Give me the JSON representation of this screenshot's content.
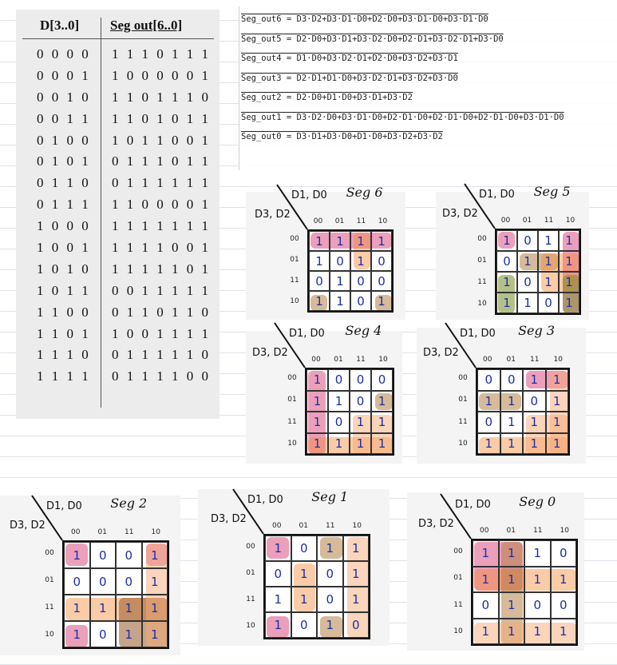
{
  "truth_table": {
    "header_input": "D[3..0]",
    "header_output": "Seg out[6..0]",
    "rows": [
      {
        "d": "0 0 0 0",
        "seg": "1 1 1 0 1 1 1"
      },
      {
        "d": "0 0 0 1",
        "seg": "1 0 0 0 0 0 1"
      },
      {
        "d": "0 0 1 0",
        "seg": "1 1 0 1 1 1 0"
      },
      {
        "d": "0 0 1 1",
        "seg": "1 1 0 1 0 1 1"
      },
      {
        "d": "0 1 0 0",
        "seg": "1 0 1 1 0 0 1"
      },
      {
        "d": "0 1 0 1",
        "seg": "0 1 1 1 0 1 1"
      },
      {
        "d": "0 1 1 0",
        "seg": "0 1 1 1 1 1 1"
      },
      {
        "d": "0 1 1 1",
        "seg": "1 1 0 0 0 0 1"
      },
      {
        "d": "1 0 0 0",
        "seg": "1 1 1 1 1 1 1"
      },
      {
        "d": "1 0 0 1",
        "seg": "1 1 1 1 0 0 1"
      },
      {
        "d": "1 0 1 0",
        "seg": "1 1 1 1 1 0 1"
      },
      {
        "d": "1 0 1 1",
        "seg": "0 0 1 1 1 1 1"
      },
      {
        "d": "1 1 0 0",
        "seg": "0 1 1 0 1 1 0"
      },
      {
        "d": "1 1 0 1",
        "seg": "1 0 0 1 1 1 1"
      },
      {
        "d": "1 1 1 0",
        "seg": "0 1 1 1 1 1 0"
      },
      {
        "d": "1 1 1 1",
        "seg": "0 1 1 1 1 0 0"
      }
    ]
  },
  "equations": [
    "Seg_out6 = D3·D2+D3·D1·D0+D2·D0+D3·D1·D0+D3·D1·D0",
    "Seg_out5 = D2·D0+D3·D1+D3·D2·D0+D2·D1+D3·D2·D1+D3·D0",
    "Seg_out4 = D1·D0+D3·D2·D1+D2·D0+D3·D2+D3·D1",
    "Seg_out3 = D2·D1+D1·D0+D3·D2·D1+D3·D2+D3·D0",
    "Seg_out2 = D2·D0+D1·D0+D3·D1+D3·D2",
    "Seg_out1 = D3·D2·D0+D3·D1·D0+D2·D1·D0+D2·D1·D0+D2·D1·D0+D3·D1·D0",
    "Seg_out0 = D3·D1+D3·D0+D1·D0+D3·D2+D3·D2"
  ],
  "kmap_common": {
    "col_label": "D1, D0",
    "row_label": "D3, D2",
    "codes": [
      "00",
      "01",
      "11",
      "10"
    ]
  },
  "kmaps": [
    {
      "title": "Seg 6",
      "cells": [
        "1",
        "1",
        "1",
        "1",
        "1",
        "0",
        "1",
        "0",
        "0",
        "1",
        "0",
        "0",
        "1",
        "1",
        "0",
        "1"
      ]
    },
    {
      "title": "Seg 5",
      "cells": [
        "1",
        "0",
        "1",
        "1",
        "0",
        "1",
        "1",
        "1",
        "1",
        "0",
        "1",
        "1",
        "1",
        "1",
        "0",
        "1"
      ]
    },
    {
      "title": "Seg 4",
      "cells": [
        "1",
        "0",
        "0",
        "0",
        "1",
        "1",
        "0",
        "1",
        "1",
        "0",
        "1",
        "1",
        "1",
        "1",
        "1",
        "1"
      ]
    },
    {
      "title": "Seg 3",
      "cells": [
        "0",
        "0",
        "1",
        "1",
        "1",
        "1",
        "0",
        "1",
        "0",
        "1",
        "1",
        "1",
        "1",
        "1",
        "1",
        "1"
      ]
    },
    {
      "title": "Seg 2",
      "cells": [
        "1",
        "0",
        "0",
        "1",
        "0",
        "0",
        "0",
        "1",
        "1",
        "1",
        "1",
        "1",
        "1",
        "0",
        "1",
        "1"
      ]
    },
    {
      "title": "Seg 1",
      "cells": [
        "1",
        "0",
        "1",
        "1",
        "0",
        "1",
        "0",
        "1",
        "1",
        "1",
        "0",
        "1",
        "1",
        "0",
        "1",
        "0"
      ]
    },
    {
      "title": "Seg 0",
      "cells": [
        "1",
        "1",
        "1",
        "0",
        "1",
        "1",
        "1",
        "1",
        "0",
        "1",
        "0",
        "0",
        "1",
        "1",
        "1",
        "1"
      ]
    }
  ],
  "colors": {
    "pink": "#da5082",
    "orange": "#f58c3c",
    "tan": "#b48246",
    "olive": "#788c28",
    "peach": "#f5aa78",
    "brown": "#965a28"
  }
}
